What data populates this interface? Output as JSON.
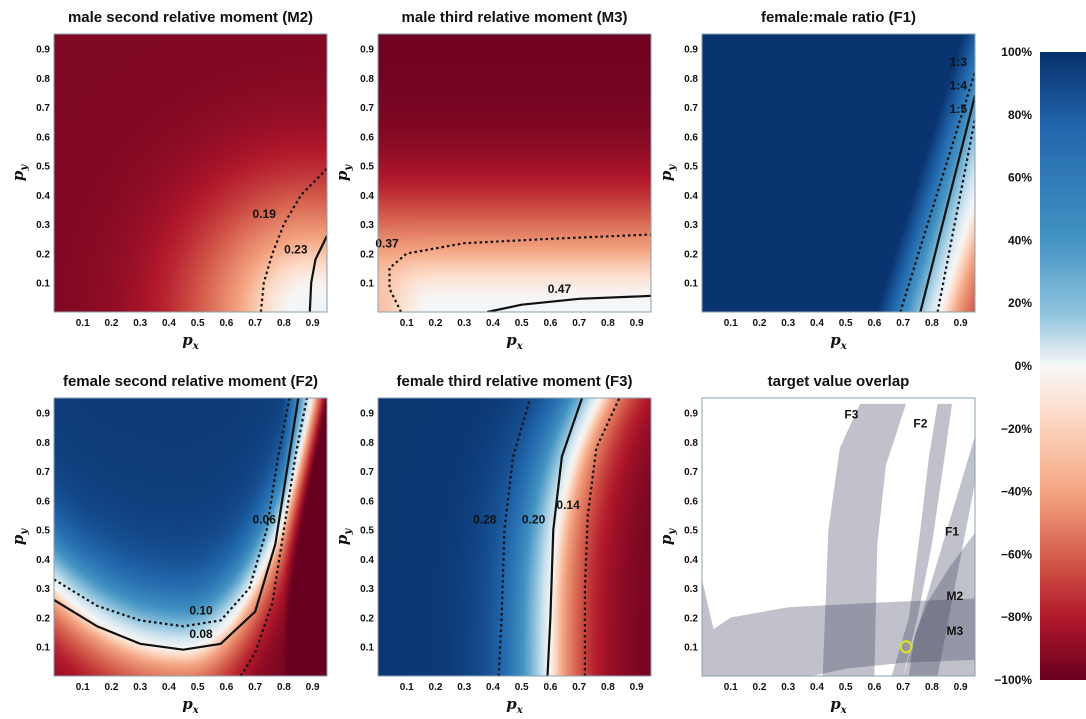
{
  "chart_data": [
    {
      "type": "heatmap",
      "id": "M2",
      "title": "male second relative moment (M2)",
      "xlabel": "p",
      "xlabel_sub": "x",
      "ylabel": "p",
      "ylabel_sub": "y",
      "xlim": [
        0,
        0.95
      ],
      "ylim": [
        0,
        0.95
      ],
      "xticks": [
        "0.1",
        "0.2",
        "0.3",
        "0.4",
        "0.5",
        "0.6",
        "0.7",
        "0.8",
        "0.9"
      ],
      "yticks": [
        "0.1",
        "0.2",
        "0.3",
        "0.4",
        "0.5",
        "0.6",
        "0.7",
        "0.8",
        "0.9"
      ],
      "contours": [
        {
          "label": "0.19",
          "style": "dotted",
          "points": [
            [
              0.72,
              0
            ],
            [
              0.73,
              0.1
            ],
            [
              0.76,
              0.2
            ],
            [
              0.8,
              0.3
            ],
            [
              0.86,
              0.4
            ],
            [
              0.95,
              0.49
            ]
          ]
        },
        {
          "label": "0.23",
          "style": "solid",
          "points": [
            [
              0.89,
              0
            ],
            [
              0.895,
              0.1
            ],
            [
              0.91,
              0.18
            ],
            [
              0.95,
              0.26
            ]
          ]
        }
      ]
    },
    {
      "type": "heatmap",
      "id": "M3",
      "title": "male third relative moment (M3)",
      "xlabel": "p",
      "xlabel_sub": "x",
      "ylabel": "p",
      "ylabel_sub": "y",
      "xlim": [
        0,
        0.95
      ],
      "ylim": [
        0,
        0.95
      ],
      "xticks": [
        "0.1",
        "0.2",
        "0.3",
        "0.4",
        "0.5",
        "0.6",
        "0.7",
        "0.8",
        "0.9"
      ],
      "yticks": [
        "0.1",
        "0.2",
        "0.3",
        "0.4",
        "0.5",
        "0.6",
        "0.7",
        "0.8",
        "0.9"
      ],
      "contours": [
        {
          "label": "0.37",
          "style": "dotted",
          "points": [
            [
              0.08,
              0
            ],
            [
              0.04,
              0.08
            ],
            [
              0.04,
              0.15
            ],
            [
              0.1,
              0.2
            ],
            [
              0.3,
              0.235
            ],
            [
              0.6,
              0.25
            ],
            [
              0.95,
              0.265
            ]
          ]
        },
        {
          "label": "0.47",
          "style": "solid",
          "points": [
            [
              0.38,
              0
            ],
            [
              0.5,
              0.025
            ],
            [
              0.7,
              0.045
            ],
            [
              0.95,
              0.055
            ]
          ]
        }
      ]
    },
    {
      "type": "heatmap",
      "id": "F1",
      "title": "female:male ratio (F1)",
      "xlabel": "p",
      "xlabel_sub": "x",
      "ylabel": "p",
      "ylabel_sub": "y",
      "xlim": [
        0,
        0.95
      ],
      "ylim": [
        0,
        0.95
      ],
      "xticks": [
        "0.1",
        "0.2",
        "0.3",
        "0.4",
        "0.5",
        "0.6",
        "0.7",
        "0.8",
        "0.9"
      ],
      "yticks": [
        "0.1",
        "0.2",
        "0.3",
        "0.4",
        "0.5",
        "0.6",
        "0.7",
        "0.8",
        "0.9"
      ],
      "contours": [
        {
          "label": "1:3",
          "style": "dotted",
          "points": [
            [
              0.69,
              0
            ],
            [
              0.95,
              0.82
            ]
          ]
        },
        {
          "label": "1:4",
          "style": "solid",
          "points": [
            [
              0.76,
              0
            ],
            [
              0.95,
              0.74
            ]
          ]
        },
        {
          "label": "1:5",
          "style": "dotted",
          "points": [
            [
              0.82,
              0
            ],
            [
              0.95,
              0.66
            ]
          ]
        }
      ]
    },
    {
      "type": "heatmap",
      "id": "F2",
      "title": "female second relative moment (F2)",
      "xlabel": "p",
      "xlabel_sub": "x",
      "ylabel": "p",
      "ylabel_sub": "y",
      "xlim": [
        0,
        0.95
      ],
      "ylim": [
        0,
        0.95
      ],
      "xticks": [
        "0.1",
        "0.2",
        "0.3",
        "0.4",
        "0.5",
        "0.6",
        "0.7",
        "0.8",
        "0.9"
      ],
      "yticks": [
        "0.1",
        "0.2",
        "0.3",
        "0.4",
        "0.5",
        "0.6",
        "0.7",
        "0.8",
        "0.9"
      ],
      "contours": [
        {
          "label": "0.10",
          "style": "dotted",
          "points": [
            [
              0,
              0.33
            ],
            [
              0.15,
              0.24
            ],
            [
              0.3,
              0.19
            ],
            [
              0.45,
              0.17
            ],
            [
              0.58,
              0.19
            ],
            [
              0.68,
              0.3
            ],
            [
              0.74,
              0.5
            ],
            [
              0.78,
              0.75
            ],
            [
              0.82,
              0.95
            ]
          ]
        },
        {
          "label": "0.08",
          "style": "solid",
          "points": [
            [
              0,
              0.26
            ],
            [
              0.15,
              0.17
            ],
            [
              0.3,
              0.11
            ],
            [
              0.45,
              0.09
            ],
            [
              0.58,
              0.11
            ],
            [
              0.7,
              0.22
            ],
            [
              0.77,
              0.45
            ],
            [
              0.81,
              0.7
            ],
            [
              0.85,
              0.95
            ]
          ]
        },
        {
          "label": "0.06",
          "style": "dotted",
          "points": [
            [
              0.65,
              0
            ],
            [
              0.7,
              0.08
            ],
            [
              0.76,
              0.25
            ],
            [
              0.8,
              0.5
            ],
            [
              0.84,
              0.75
            ],
            [
              0.88,
              0.95
            ]
          ]
        }
      ]
    },
    {
      "type": "heatmap",
      "id": "F3",
      "title": "female third relative moment (F3)",
      "xlabel": "p",
      "xlabel_sub": "x",
      "ylabel": "p",
      "ylabel_sub": "y",
      "xlim": [
        0,
        0.95
      ],
      "ylim": [
        0,
        0.95
      ],
      "xticks": [
        "0.1",
        "0.2",
        "0.3",
        "0.4",
        "0.5",
        "0.6",
        "0.7",
        "0.8",
        "0.9"
      ],
      "yticks": [
        "0.1",
        "0.2",
        "0.3",
        "0.4",
        "0.5",
        "0.6",
        "0.7",
        "0.8",
        "0.9"
      ],
      "contours": [
        {
          "label": "0.28",
          "style": "dotted",
          "points": [
            [
              0.42,
              0
            ],
            [
              0.43,
              0.2
            ],
            [
              0.44,
              0.5
            ],
            [
              0.47,
              0.75
            ],
            [
              0.53,
              0.95
            ]
          ]
        },
        {
          "label": "0.20",
          "style": "solid",
          "points": [
            [
              0.59,
              0
            ],
            [
              0.6,
              0.2
            ],
            [
              0.61,
              0.5
            ],
            [
              0.64,
              0.75
            ],
            [
              0.71,
              0.95
            ]
          ]
        },
        {
          "label": "0.14",
          "style": "dotted",
          "points": [
            [
              0.72,
              0
            ],
            [
              0.72,
              0.3
            ],
            [
              0.73,
              0.55
            ],
            [
              0.76,
              0.78
            ],
            [
              0.84,
              0.95
            ]
          ]
        }
      ]
    },
    {
      "type": "overlap",
      "id": "overlap",
      "title": "target value overlap",
      "xlabel": "p",
      "xlabel_sub": "x",
      "ylabel": "p",
      "ylabel_sub": "y",
      "xlim": [
        0,
        0.95
      ],
      "ylim": [
        0,
        0.95
      ],
      "xticks": [
        "0.1",
        "0.2",
        "0.3",
        "0.4",
        "0.5",
        "0.6",
        "0.7",
        "0.8",
        "0.9"
      ],
      "yticks": [
        "0.1",
        "0.2",
        "0.3",
        "0.4",
        "0.5",
        "0.6",
        "0.7",
        "0.8",
        "0.9"
      ],
      "regions": [
        {
          "label": "F3",
          "label_at": [
            0.52,
            0.88
          ],
          "points": [
            [
              0.42,
              0
            ],
            [
              0.44,
              0.5
            ],
            [
              0.48,
              0.78
            ],
            [
              0.55,
              0.93
            ],
            [
              0.71,
              0.93
            ],
            [
              0.64,
              0.72
            ],
            [
              0.61,
              0.45
            ],
            [
              0.6,
              0
            ]
          ]
        },
        {
          "label": "F2",
          "label_at": [
            0.76,
            0.85
          ],
          "points": [
            [
              0.66,
              0
            ],
            [
              0.72,
              0.2
            ],
            [
              0.76,
              0.5
            ],
            [
              0.79,
              0.75
            ],
            [
              0.82,
              0.93
            ],
            [
              0.87,
              0.93
            ],
            [
              0.84,
              0.72
            ],
            [
              0.8,
              0.45
            ],
            [
              0.75,
              0.2
            ],
            [
              0.7,
              0
            ]
          ]
        },
        {
          "label": "F1",
          "label_at": [
            0.87,
            0.48
          ],
          "points": [
            [
              0.7,
              0
            ],
            [
              0.95,
              0.82
            ],
            [
              0.95,
              0.66
            ],
            [
              0.82,
              0
            ]
          ]
        },
        {
          "label": "M2",
          "label_at": [
            0.88,
            0.26
          ],
          "points": [
            [
              0.72,
              0
            ],
            [
              0.74,
              0.14
            ],
            [
              0.79,
              0.26
            ],
            [
              0.86,
              0.37
            ],
            [
              0.95,
              0.49
            ],
            [
              0.95,
              0
            ]
          ]
        },
        {
          "label": "M3",
          "label_at": [
            0.88,
            0.14
          ],
          "points": [
            [
              0,
              0.33
            ],
            [
              0.04,
              0.16
            ],
            [
              0.1,
              0.2
            ],
            [
              0.3,
              0.235
            ],
            [
              0.6,
              0.25
            ],
            [
              0.95,
              0.265
            ],
            [
              0.95,
              0.055
            ],
            [
              0.7,
              0.045
            ],
            [
              0.5,
              0.025
            ],
            [
              0.38,
              0
            ],
            [
              0,
              0
            ]
          ]
        }
      ],
      "marker": {
        "x": 0.71,
        "y": 0.1,
        "color": "#d8e02a"
      }
    }
  ],
  "colorbar": {
    "ticks": [
      "100%",
      "80%",
      "60%",
      "40%",
      "20%",
      "0%",
      "−20%",
      "−40%",
      "−60%",
      "−80%",
      "−100%"
    ],
    "range": [
      -100,
      100
    ],
    "colors_top_to_bottom": [
      "#08306b",
      "#2166ac",
      "#4393c3",
      "#92c5de",
      "#f7f7f7",
      "#fddbc7",
      "#f4a582",
      "#d6604d",
      "#b2182b",
      "#67001f"
    ]
  }
}
